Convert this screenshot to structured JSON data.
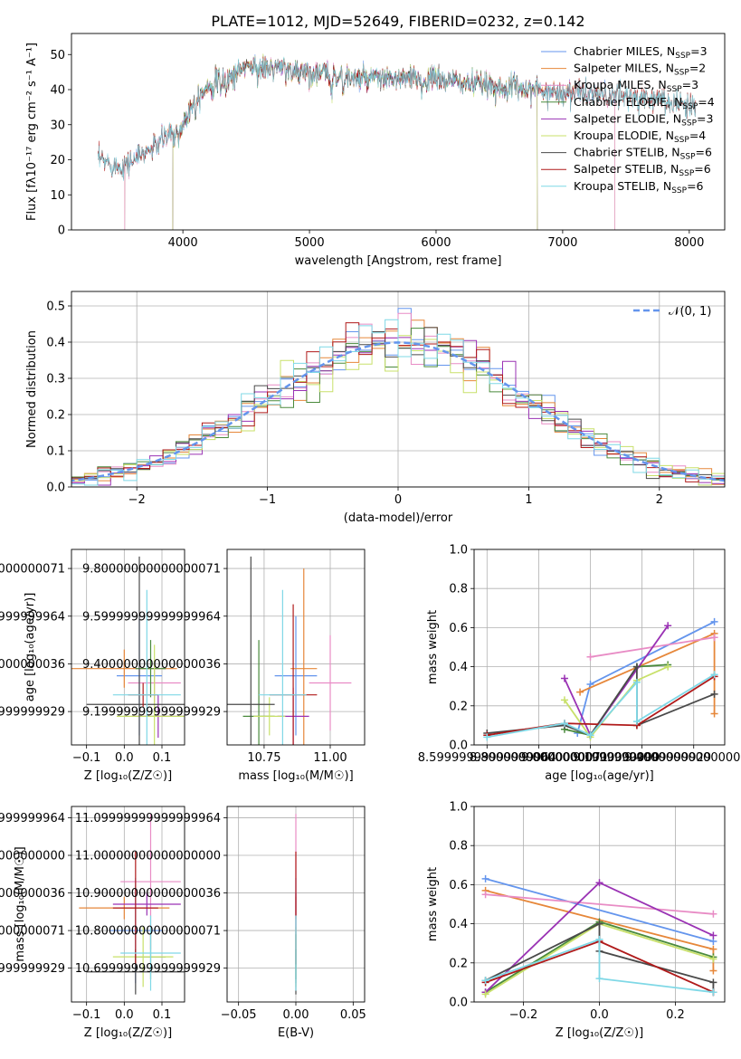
{
  "figure_title": "PLATE=1012, MJD=52649, FIBERID=0232, z=0.142",
  "model_colors": [
    "#6495ed",
    "#e6873a",
    "#e88cc5",
    "#4a8a3c",
    "#9a32b4",
    "#c8e06a",
    "#4a4a4a",
    "#b01a1a",
    "#7fd8e6"
  ],
  "chart_data": [
    {
      "id": "spectrum",
      "type": "line",
      "title": "PLATE=1012, MJD=52649, FIBERID=0232, z=0.142",
      "xlabel": "wavelength [Angstrom, rest frame]",
      "ylabel": "Flux [fλ10⁻¹⁷ erg cm⁻² s⁻¹ A⁻¹]",
      "xlim": [
        3120,
        8280
      ],
      "ylim": [
        0,
        56
      ],
      "xticks": [
        4000,
        5000,
        6000,
        7000,
        8000
      ],
      "yticks": [
        0,
        10,
        20,
        30,
        40,
        50
      ],
      "grid": false,
      "legend": "upper-right",
      "legend_entries": [
        "Chabrier MILES, N_SSP=3",
        "Salpeter MILES, N_SSP=2",
        "Kroupa MILES, N_SSP=3",
        "Chabrier ELODIE, N_SSP=4",
        "Salpeter ELODIE, N_SSP=3",
        "Kroupa ELODIE, N_SSP=4",
        "Chabrier STELIB, N_SSP=6",
        "Salpeter STELIB, N_SSP=6",
        "Kroupa STELIB, N_SSP=6"
      ],
      "continuum": {
        "x": [
          3330,
          3420,
          3500,
          3560,
          3650,
          3750,
          3850,
          3950,
          4000,
          4100,
          4200,
          4300,
          4400,
          4500,
          4600,
          4800,
          5000,
          5200,
          5400,
          5600,
          5800,
          6000,
          6200,
          6400,
          6600,
          6800,
          7000,
          7200,
          7400,
          7600,
          7800,
          8050
        ],
        "y": [
          20,
          19,
          18,
          19,
          21,
          23,
          26,
          29,
          30,
          38,
          41,
          43,
          44,
          47,
          46,
          46,
          45,
          44,
          43,
          43,
          43,
          43,
          42,
          41,
          41,
          40,
          39,
          39,
          38,
          38,
          37,
          35
        ]
      },
      "model_ranges": [
        {
          "name": "Chabrier MILES",
          "xmin": 3540,
          "xmax": 7410
        },
        {
          "name": "Salpeter MILES",
          "xmin": 3540,
          "xmax": 7410
        },
        {
          "name": "Kroupa MILES",
          "xmin": 3540,
          "xmax": 7410
        },
        {
          "name": "Chabrier ELODIE",
          "xmin": 3920,
          "xmax": 6800
        },
        {
          "name": "Salpeter ELODIE",
          "xmin": 3920,
          "xmax": 6800
        },
        {
          "name": "Kroupa ELODIE",
          "xmin": 3920,
          "xmax": 6800
        },
        {
          "name": "Chabrier STELIB",
          "xmin": 3330,
          "xmax": 8050
        },
        {
          "name": "Salpeter STELIB",
          "xmin": 3330,
          "xmax": 8050
        },
        {
          "name": "Kroupa STELIB",
          "xmin": 3330,
          "xmax": 8050
        }
      ]
    },
    {
      "id": "residuals",
      "type": "line",
      "xlabel": "(data-model)/error",
      "ylabel": "Normed distribution",
      "xlim": [
        -2.5,
        2.5
      ],
      "ylim": [
        0,
        0.54
      ],
      "xticks": [
        -2,
        -1,
        0,
        1,
        2
      ],
      "yticks": [
        0.0,
        0.1,
        0.2,
        0.3,
        0.4,
        0.5
      ],
      "grid": true,
      "legend": "upper-right",
      "legend_entries": [
        "𝒩(0, 1)"
      ],
      "bin_width": 0.1,
      "reference": "standard normal (dashed)"
    },
    {
      "id": "z-age",
      "type": "scatter",
      "xlabel": "Z [log₁₀(Z/Z☉)]",
      "ylabel": "age  [log₁₀(age/yr)]",
      "xlim": [
        -0.14,
        0.16
      ],
      "ylim": [
        9.06,
        9.88
      ],
      "xticks": [
        -0.1,
        0.0,
        0.1
      ],
      "yticks": [
        9.2,
        9.4,
        9.6,
        9.8
      ],
      "grid": true,
      "points": [
        {
          "x": 0.04,
          "y": 9.35,
          "xerr": 0.06,
          "yerr": 0.25
        },
        {
          "x": 0.0,
          "y": 9.38,
          "xerr": 0.14,
          "yerr": 0.08
        },
        {
          "x": 0.08,
          "y": 9.32,
          "xerr": 0.07,
          "yerr": 0.08
        },
        {
          "x": 0.07,
          "y": 9.38,
          "xerr": 0.04,
          "yerr": 0.12
        },
        {
          "x": 0.09,
          "y": 9.18,
          "xerr": 0.07,
          "yerr": 0.09
        },
        {
          "x": 0.08,
          "y": 9.18,
          "xerr": 0.1,
          "yerr": 0.3
        },
        {
          "x": 0.04,
          "y": 9.23,
          "xerr": 0.14,
          "yerr": 0.62
        },
        {
          "x": 0.05,
          "y": 9.27,
          "xerr": 0.04,
          "yerr": 0.05
        },
        {
          "x": 0.06,
          "y": 9.27,
          "xerr": 0.09,
          "yerr": 0.44
        }
      ]
    },
    {
      "id": "mass-age",
      "type": "scatter",
      "xlabel": "mass [log₁₀(M/M☉)]",
      "ylabel": "",
      "xlim": [
        10.61,
        11.13
      ],
      "ylim": [
        9.06,
        9.88
      ],
      "xticks": [
        10.75,
        11.0
      ],
      "yticks": [
        9.2,
        9.4,
        9.6,
        9.8
      ],
      "grid": true,
      "points": [
        {
          "x": 10.87,
          "y": 9.35,
          "xerr": 0.08,
          "yerr": 0.25
        },
        {
          "x": 10.9,
          "y": 9.38,
          "xerr": 0.05,
          "yerr": 0.42
        },
        {
          "x": 11.0,
          "y": 9.32,
          "xerr": 0.08,
          "yerr": 0.2
        },
        {
          "x": 10.73,
          "y": 9.18,
          "xerr": 0.06,
          "yerr": 0.32
        },
        {
          "x": 10.86,
          "y": 9.18,
          "xerr": 0.06,
          "yerr": 0.12
        },
        {
          "x": 10.77,
          "y": 9.18,
          "xerr": 0.06,
          "yerr": 0.08
        },
        {
          "x": 10.7,
          "y": 9.23,
          "xerr": 0.09,
          "yerr": 0.62
        },
        {
          "x": 10.86,
          "y": 9.27,
          "xerr": 0.09,
          "yerr": 0.38
        },
        {
          "x": 10.82,
          "y": 9.27,
          "xerr": 0.09,
          "yerr": 0.44
        }
      ]
    },
    {
      "id": "age-weight",
      "type": "line",
      "xlabel": "age  [log₁₀(age/yr)]",
      "ylabel": "mass weight",
      "xlim": [
        8.55,
        9.52
      ],
      "ylim": [
        0,
        1
      ],
      "xticks": [
        8.6,
        8.8,
        9.0,
        9.2,
        9.4
      ],
      "yticks": [
        0.0,
        0.2,
        0.4,
        0.6,
        0.8,
        1.0
      ],
      "grid": true,
      "series": [
        {
          "x": [
            8.95,
            9.0,
            9.48
          ],
          "y": [
            0.06,
            0.31,
            0.63
          ]
        },
        {
          "x": [
            8.96,
            9.48,
            9.48
          ],
          "y": [
            0.27,
            0.57,
            0.16
          ]
        },
        {
          "x": [
            9.0,
            9.48
          ],
          "y": [
            0.45,
            0.55
          ]
        },
        {
          "x": [
            8.9,
            9.0,
            9.18,
            9.3
          ],
          "y": [
            0.08,
            0.05,
            0.4,
            0.41
          ]
        },
        {
          "x": [
            8.9,
            9.0,
            9.3
          ],
          "y": [
            0.34,
            0.05,
            0.61
          ]
        },
        {
          "x": [
            8.9,
            9.0,
            9.18,
            9.3
          ],
          "y": [
            0.23,
            0.04,
            0.33,
            0.4
          ]
        },
        {
          "x": [
            8.6,
            8.9,
            9.0,
            9.18,
            9.18,
            9.48
          ],
          "y": [
            0.06,
            0.1,
            0.05,
            0.4,
            0.1,
            0.26
          ]
        },
        {
          "x": [
            8.6,
            8.9,
            9.18,
            9.48
          ],
          "y": [
            0.05,
            0.11,
            0.1,
            0.35
          ]
        },
        {
          "x": [
            8.6,
            8.9,
            9.0,
            9.18,
            9.18,
            9.48
          ],
          "y": [
            0.04,
            0.11,
            0.05,
            0.32,
            0.12,
            0.36
          ]
        }
      ]
    },
    {
      "id": "z-mass",
      "type": "scatter",
      "xlabel": "Z [log₁₀(Z/Z☉)]",
      "ylabel": "mass [log₁₀(M/M☉)]",
      "xlim": [
        -0.14,
        0.16
      ],
      "ylim": [
        10.61,
        11.13
      ],
      "xticks": [
        -0.1,
        0.0,
        0.1
      ],
      "yticks": [
        10.7,
        10.8,
        10.9,
        11.0,
        11.1
      ],
      "grid": true,
      "points": [
        {
          "x": 0.03,
          "y": 10.8,
          "xerr": 0.07,
          "yerr": 0.14
        },
        {
          "x": 0.0,
          "y": 10.86,
          "xerr": 0.12,
          "yerr": 0.03
        },
        {
          "x": 0.07,
          "y": 10.93,
          "xerr": 0.08,
          "yerr": 0.18
        },
        {
          "x": 0.07,
          "y": 10.73,
          "xerr": 0.04,
          "yerr": 0.06
        },
        {
          "x": 0.06,
          "y": 10.87,
          "xerr": 0.09,
          "yerr": 0.03
        },
        {
          "x": 0.05,
          "y": 10.73,
          "xerr": 0.08,
          "yerr": 0.08
        },
        {
          "x": 0.03,
          "y": 10.69,
          "xerr": 0.13,
          "yerr": 0.06
        },
        {
          "x": 0.03,
          "y": 10.86,
          "xerr": 0.06,
          "yerr": 0.15
        },
        {
          "x": 0.07,
          "y": 10.74,
          "xerr": 0.08,
          "yerr": 0.1
        }
      ]
    },
    {
      "id": "ebv-mass",
      "type": "scatter",
      "xlabel": "E(B-V)",
      "ylabel": "",
      "xlim": [
        -0.06,
        0.06
      ],
      "ylim": [
        10.61,
        11.13
      ],
      "xticks": [
        -0.05,
        0.0,
        0.05
      ],
      "yticks": [
        10.7,
        10.8,
        10.9,
        11.0,
        11.1
      ],
      "grid": true,
      "points": [
        {
          "x": 0.0,
          "y": 10.8,
          "yerr": 0.14
        },
        {
          "x": 0.0,
          "y": 10.86,
          "yerr": 0.03
        },
        {
          "x": 0.0,
          "y": 10.93,
          "yerr": 0.18
        },
        {
          "x": 0.0,
          "y": 10.73,
          "yerr": 0.06
        },
        {
          "x": 0.0,
          "y": 10.87,
          "yerr": 0.03
        },
        {
          "x": 0.0,
          "y": 10.73,
          "yerr": 0.08
        },
        {
          "x": 0.0,
          "y": 10.69,
          "yerr": 0.06
        },
        {
          "x": 0.0,
          "y": 10.86,
          "yerr": 0.15
        },
        {
          "x": 0.0,
          "y": 10.74,
          "yerr": 0.1
        }
      ]
    },
    {
      "id": "z-weight",
      "type": "line",
      "xlabel": "Z [log₁₀(Z/Z☉)]",
      "ylabel": "mass weight",
      "xlim": [
        -0.33,
        0.33
      ],
      "ylim": [
        0,
        1
      ],
      "xticks": [
        -0.2,
        0.0,
        0.2
      ],
      "yticks": [
        0.0,
        0.2,
        0.4,
        0.6,
        0.8,
        1.0
      ],
      "grid": true,
      "series": [
        {
          "x": [
            -0.3,
            0.3
          ],
          "y": [
            0.63,
            0.31
          ]
        },
        {
          "x": [
            -0.3,
            0.3,
            0.3
          ],
          "y": [
            0.57,
            0.27,
            0.16
          ]
        },
        {
          "x": [
            -0.3,
            0.3
          ],
          "y": [
            0.55,
            0.45
          ]
        },
        {
          "x": [
            -0.3,
            0.0,
            0.3
          ],
          "y": [
            0.05,
            0.41,
            0.23
          ]
        },
        {
          "x": [
            -0.3,
            0.0,
            0.3
          ],
          "y": [
            0.05,
            0.61,
            0.34
          ]
        },
        {
          "x": [
            -0.3,
            0.0,
            0.3
          ],
          "y": [
            0.04,
            0.4,
            0.22
          ]
        },
        {
          "x": [
            -0.3,
            0.0,
            0.0,
            0.3,
            0.3
          ],
          "y": [
            0.11,
            0.4,
            0.26,
            0.1,
            0.05
          ]
        },
        {
          "x": [
            -0.3,
            0.0,
            0.3
          ],
          "y": [
            0.1,
            0.31,
            0.05
          ]
        },
        {
          "x": [
            -0.3,
            0.0,
            0.0,
            0.3
          ],
          "y": [
            0.11,
            0.32,
            0.12,
            0.05
          ]
        }
      ]
    }
  ]
}
